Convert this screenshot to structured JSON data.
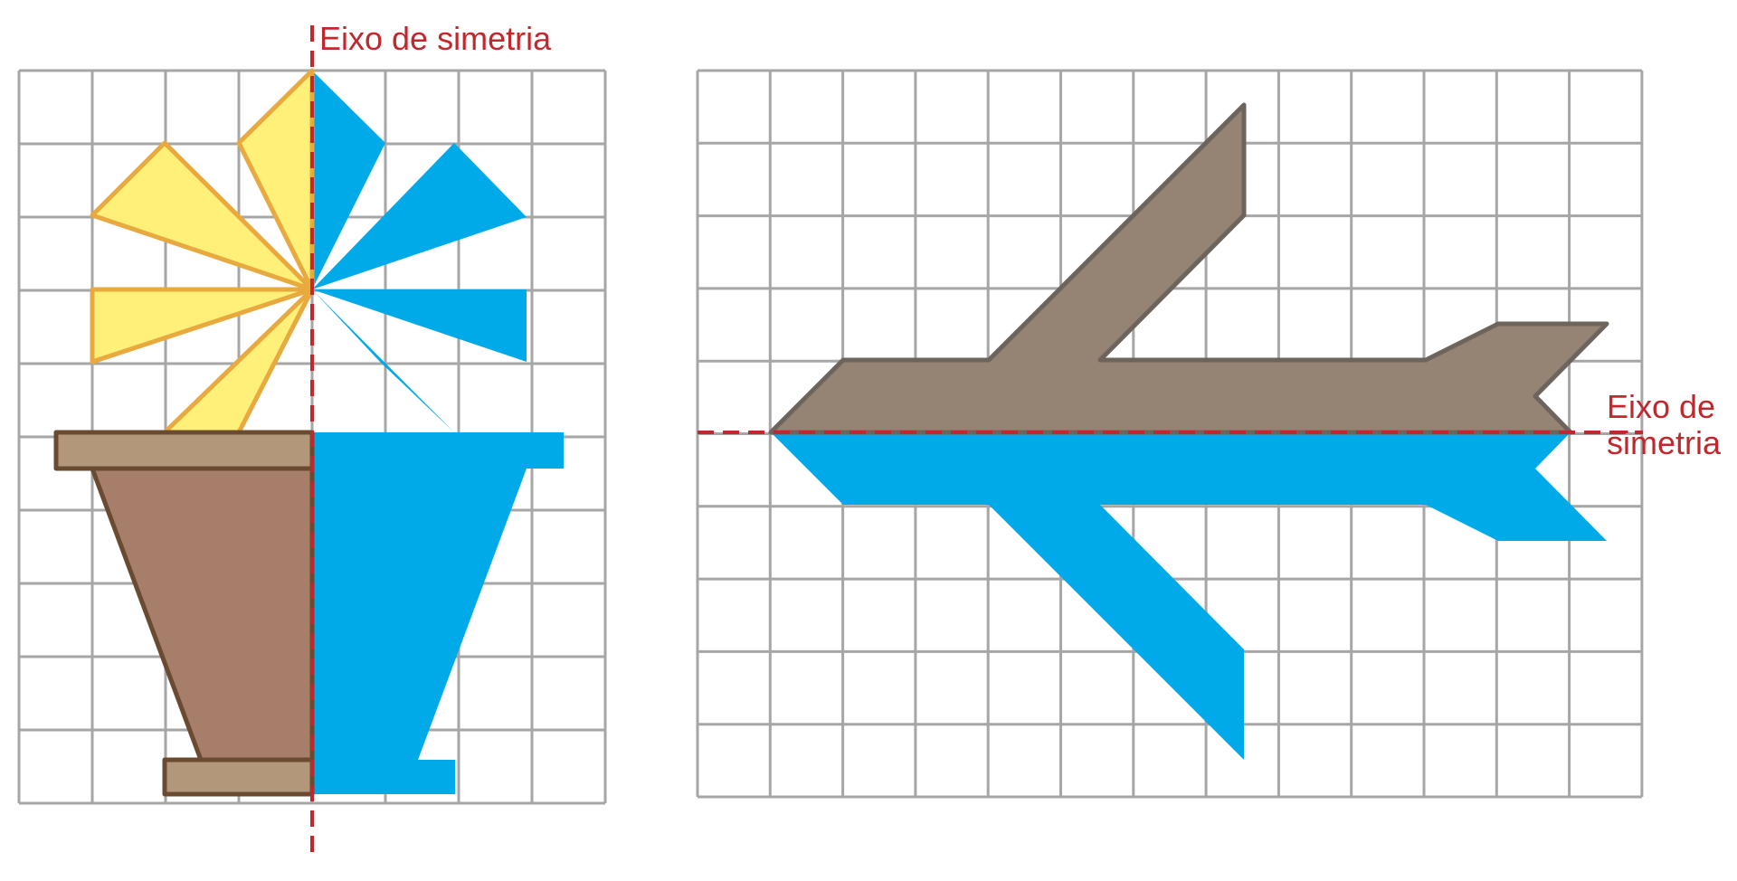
{
  "colors": {
    "grid": "#a6a6a6",
    "axis": "#c0282d",
    "reflection": "#00aae9",
    "petal_fill": "#fff07a",
    "petal_stroke": "#e8a93e",
    "pot_fill": "#a77e6a",
    "pot_rim_fill": "#b2977a",
    "pot_stroke": "#6a4b32",
    "plane_fill": "#958374",
    "plane_stroke": "#6d655d"
  },
  "figures": [
    {
      "id": "flower-pot",
      "subject": "flower in a pot",
      "grid": {
        "cols": 8,
        "rows": 10
      },
      "axis": {
        "orientation": "vertical",
        "grid_line": 4,
        "label_lines": [
          "Eixo de simetria"
        ]
      }
    },
    {
      "id": "airplane",
      "subject": "airplane",
      "grid": {
        "cols": 13,
        "rows": 10
      },
      "axis": {
        "orientation": "horizontal",
        "grid_line": 5,
        "label_lines": [
          "Eixo de",
          "simetria"
        ]
      }
    }
  ]
}
